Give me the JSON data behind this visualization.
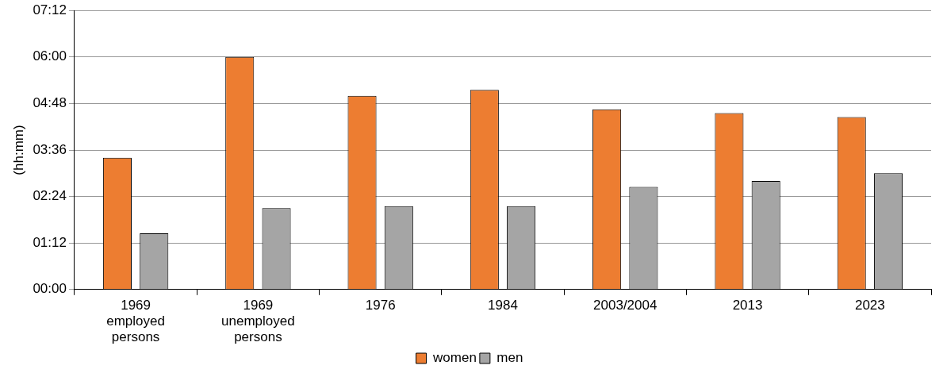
{
  "chart_data": {
    "type": "bar",
    "ylabel": "(hh:mm)",
    "categories": [
      "1969 employed persons",
      "1969 unemployed persons",
      "1976",
      "1984",
      "2003/2004",
      "2013",
      "2023"
    ],
    "series": [
      {
        "name": "women",
        "color": "#ed7d31",
        "values": [
          3.4,
          6.0,
          5.0,
          5.15,
          4.65,
          4.55,
          4.45
        ]
      },
      {
        "name": "men",
        "color": "#a5a5a5",
        "values": [
          1.45,
          2.1,
          2.15,
          2.15,
          2.65,
          2.8,
          3.0
        ]
      }
    ],
    "ylim": [
      0,
      7.2
    ],
    "yticks": [
      {
        "value": 0,
        "label": "00:00"
      },
      {
        "value": 1.2,
        "label": "01:12"
      },
      {
        "value": 2.4,
        "label": "02:24"
      },
      {
        "value": 3.6,
        "label": "03:36"
      },
      {
        "value": 4.8,
        "label": "04:48"
      },
      {
        "value": 6,
        "label": "06:00"
      },
      {
        "value": 7.2,
        "label": "07:12"
      }
    ],
    "grid": "y",
    "legend": "bottom"
  }
}
